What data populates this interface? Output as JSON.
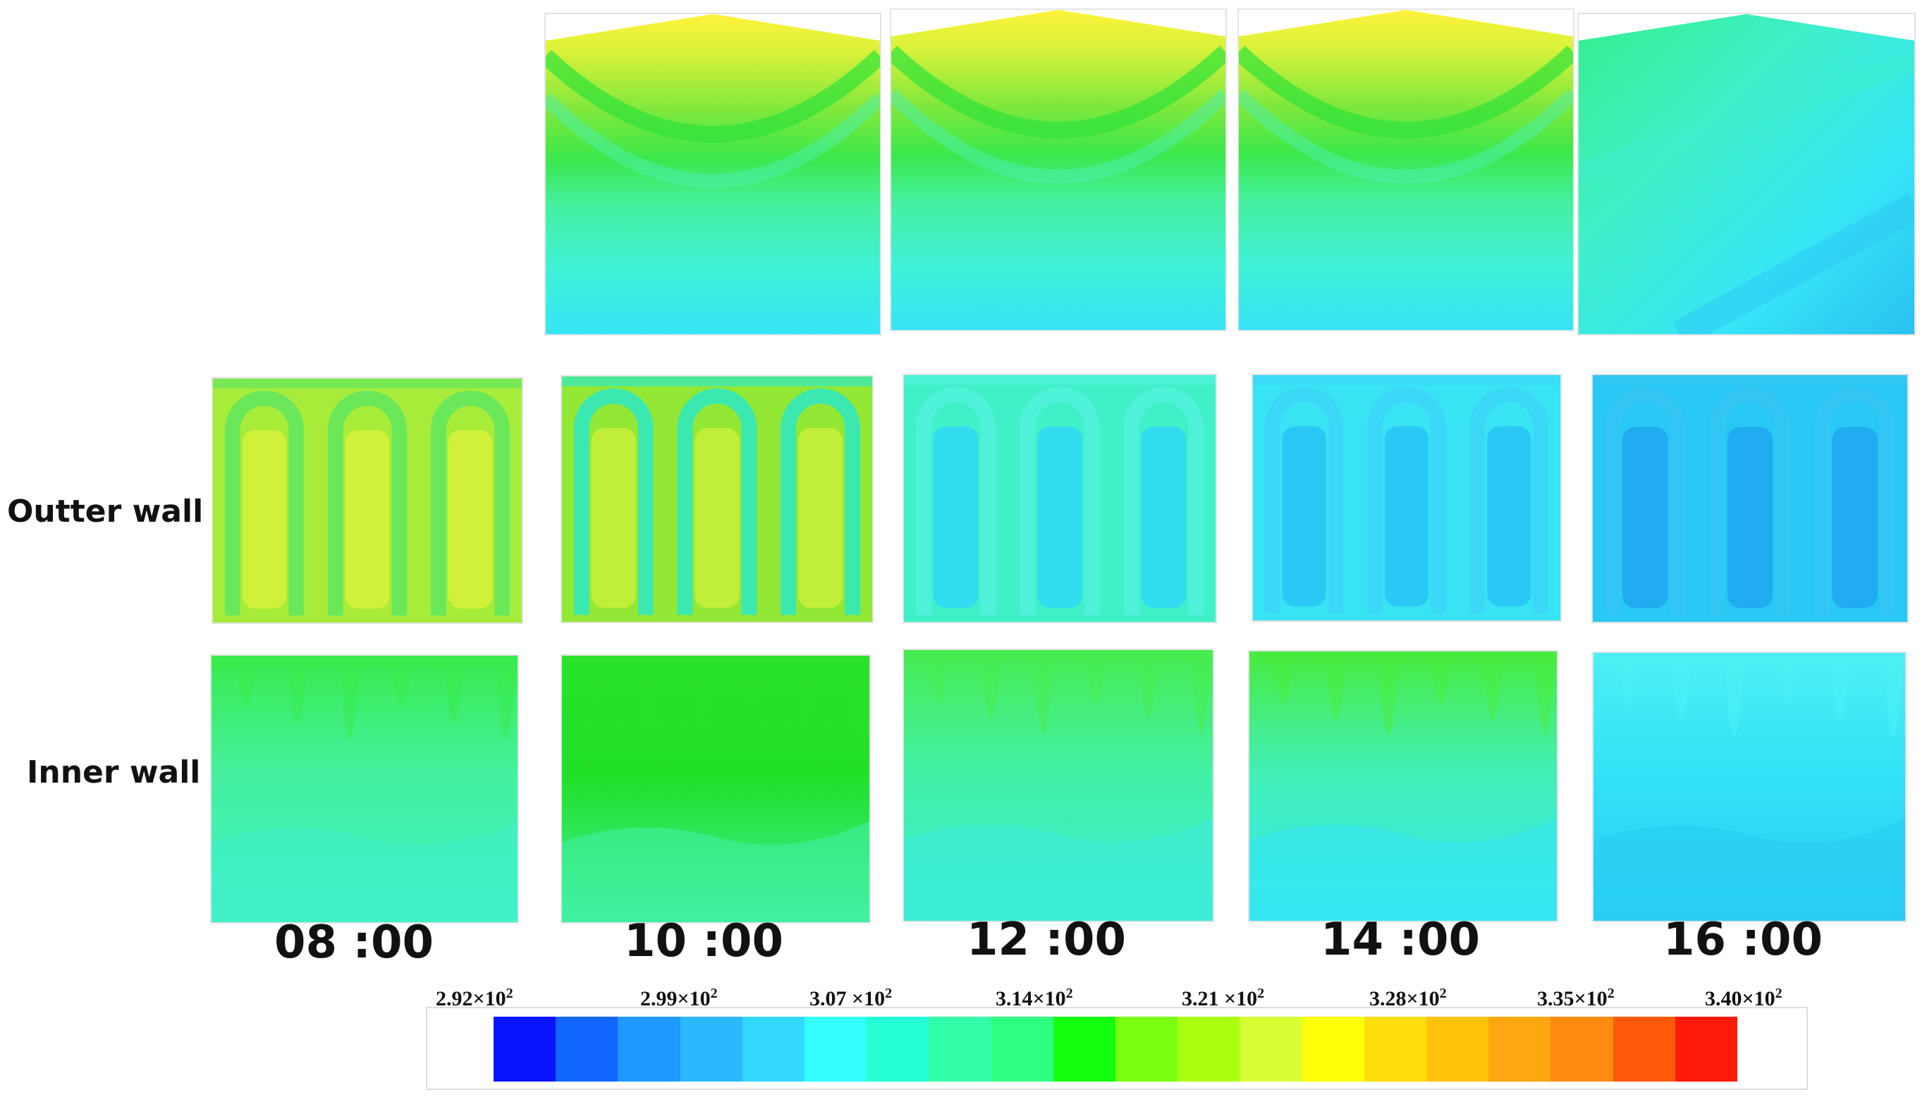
{
  "row_labels": {
    "outer": "Outter wall",
    "inner": "Inner wall"
  },
  "times": [
    "08 :00",
    "10 :00",
    "12 :00",
    "14 :00",
    "16 :00"
  ],
  "legend": {
    "ticks": [
      {
        "mantissa": "2.92",
        "times": "×10",
        "exp": "2"
      },
      {
        "mantissa": "2.99",
        "times": "×10",
        "exp": "2"
      },
      {
        "mantissa": "3.07",
        "times": " ×10",
        "exp": "2"
      },
      {
        "mantissa": "3.14",
        "times": "×10",
        "exp": "2"
      },
      {
        "mantissa": "3.21",
        "times": " ×10",
        "exp": "2"
      },
      {
        "mantissa": "3.28",
        "times": "×10",
        "exp": "2"
      },
      {
        "mantissa": "3.35",
        "times": "×10",
        "exp": "2"
      },
      {
        "mantissa": "3.40",
        "times": "×10",
        "exp": "2"
      }
    ],
    "colors": [
      "#0a14ff",
      "#1066ff",
      "#1e99ff",
      "#2bb8ff",
      "#33d8ff",
      "#33ffff",
      "#26ffd4",
      "#33ffaa",
      "#2dff80",
      "#12ff10",
      "#7aff10",
      "#aaff10",
      "#d8ff33",
      "#ffff0a",
      "#ffdd0a",
      "#ffc40a",
      "#ffa710",
      "#ff8a10",
      "#ff5a0a",
      "#ff1a0a"
    ]
  },
  "fields": {
    "roof": [
      "#c4f53a",
      "#b8f43a",
      "#a9f13a",
      "#bdf43c",
      "#33f08a"
    ],
    "outer_base": [
      "#a8ec3a",
      "#93e835",
      "#40f0c8",
      "#38e4f4",
      "#28c8f4"
    ],
    "outer_tube": [
      "#d6f23a",
      "#c8ef3a",
      "#2fd8f8",
      "#28c4f4",
      "#20a6ee"
    ],
    "outer_gap": [
      "#6be85a",
      "#3be8b0",
      "#4ef2d8",
      "#3ad8f6",
      "#33c6f4"
    ],
    "inner_top": [
      "#39ec4d",
      "#2ae22a",
      "#47ec50",
      "#48ec3f",
      "#4cf0f4"
    ],
    "inner_mid": [
      "#45f0a0",
      "#22df28",
      "#43f0a6",
      "#42efb6",
      "#33e2f6"
    ],
    "inner_bot": [
      "#3ff2c8",
      "#41f0a0",
      "#3ceed8",
      "#37e8f4",
      "#28cdf4"
    ]
  }
}
